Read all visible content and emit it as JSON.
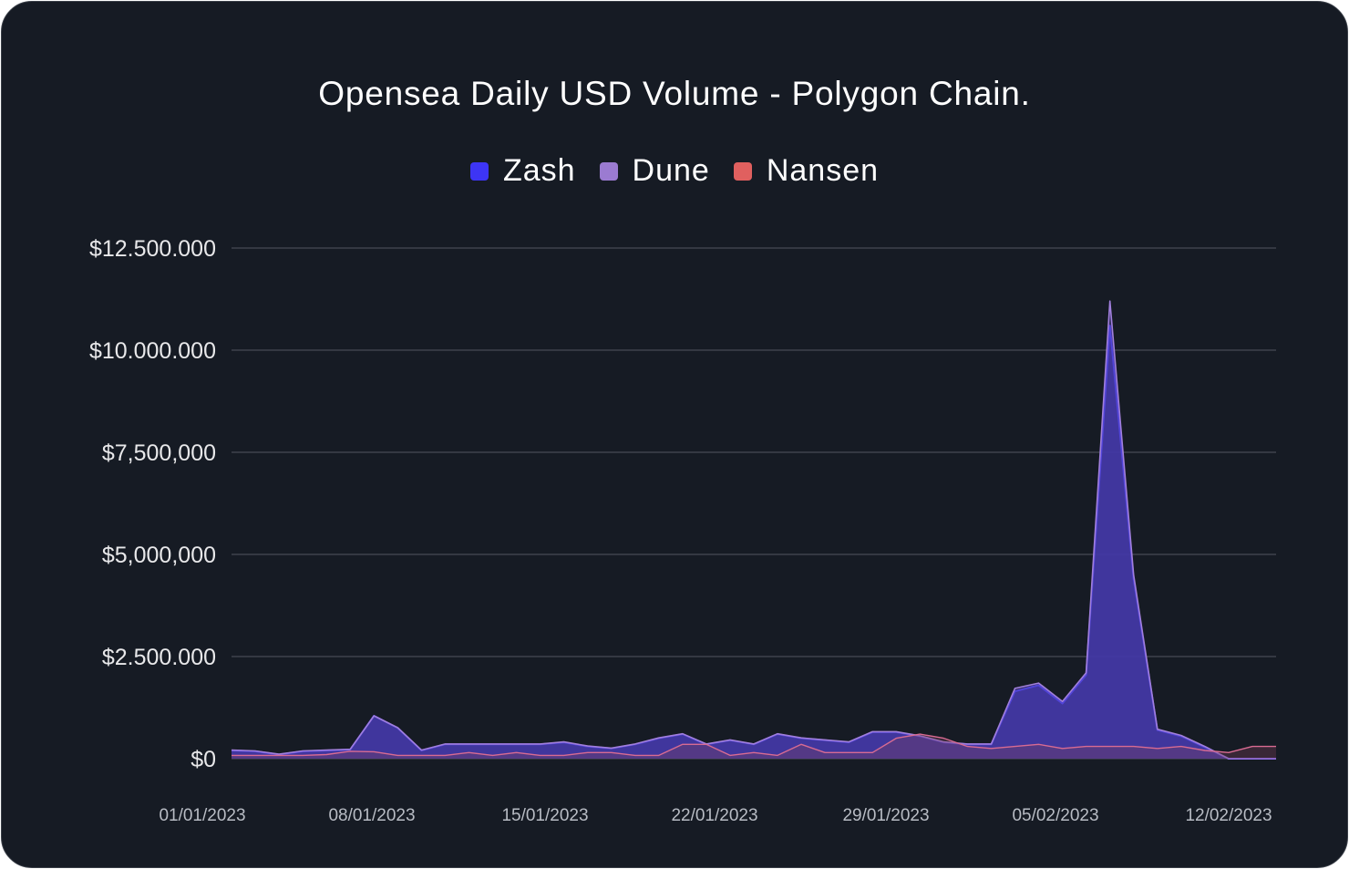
{
  "chart_data": {
    "type": "area",
    "title": "Opensea Daily USD Volume - Polygon Chain.",
    "xlabel": "",
    "ylabel": "",
    "ylim": [
      0,
      12500000
    ],
    "y_tick_values": [
      0,
      2500000,
      5000000,
      7500000,
      10000000,
      12500000
    ],
    "y_tick_labels": [
      "$0",
      "$2.500.000",
      "$5,000,000",
      "$7,500,000",
      "$10.000.000",
      "$12.500.000"
    ],
    "x_tick_labels": [
      "01/01/2023",
      "08/01/2023",
      "15/01/2023",
      "22/01/2023",
      "29/01/2023",
      "05/02/2023",
      "12/02/2023"
    ],
    "x": [
      "2022-12-30",
      "2022-12-31",
      "2023-01-01",
      "2023-01-02",
      "2023-01-03",
      "2023-01-04",
      "2023-01-05",
      "2023-01-06",
      "2023-01-07",
      "2023-01-08",
      "2023-01-09",
      "2023-01-10",
      "2023-01-11",
      "2023-01-12",
      "2023-01-13",
      "2023-01-14",
      "2023-01-15",
      "2023-01-16",
      "2023-01-17",
      "2023-01-18",
      "2023-01-19",
      "2023-01-20",
      "2023-01-21",
      "2023-01-22",
      "2023-01-23",
      "2023-01-24",
      "2023-01-25",
      "2023-01-26",
      "2023-01-27",
      "2023-01-28",
      "2023-01-29",
      "2023-01-30",
      "2023-01-31",
      "2023-02-01",
      "2023-02-02",
      "2023-02-03",
      "2023-02-04",
      "2023-02-05",
      "2023-02-06",
      "2023-02-07",
      "2023-02-08",
      "2023-02-09",
      "2023-02-10",
      "2023-02-11",
      "2023-02-12",
      "2023-02-13"
    ],
    "series": [
      {
        "name": "Zash",
        "color": "#3d35f5",
        "values": [
          120000,
          200000,
          180000,
          100000,
          180000,
          200000,
          220000,
          1050000,
          750000,
          200000,
          350000,
          350000,
          350000,
          350000,
          350000,
          400000,
          300000,
          250000,
          350000,
          500000,
          600000,
          350000,
          450000,
          350000,
          600000,
          500000,
          450000,
          400000,
          650000,
          650000,
          550000,
          400000,
          350000,
          350000,
          1650000,
          1800000,
          1350000,
          2050000,
          10600000,
          4400000,
          700000,
          550000,
          280000,
          0,
          0,
          0
        ]
      },
      {
        "name": "Dune",
        "color": "#9b7bd1",
        "values": [
          130000,
          210000,
          190000,
          110000,
          190000,
          210000,
          230000,
          1050000,
          760000,
          210000,
          360000,
          360000,
          360000,
          360000,
          360000,
          410000,
          310000,
          260000,
          360000,
          510000,
          610000,
          360000,
          460000,
          360000,
          610000,
          510000,
          460000,
          410000,
          660000,
          660000,
          560000,
          410000,
          360000,
          360000,
          1720000,
          1850000,
          1400000,
          2100000,
          11200000,
          4500000,
          720000,
          570000,
          300000,
          0,
          0,
          0
        ]
      },
      {
        "name": "Nansen",
        "color": "#e0605f",
        "values": [
          80000,
          80000,
          80000,
          80000,
          80000,
          100000,
          180000,
          170000,
          80000,
          80000,
          80000,
          150000,
          80000,
          150000,
          80000,
          80000,
          150000,
          150000,
          80000,
          80000,
          350000,
          350000,
          80000,
          150000,
          80000,
          350000,
          150000,
          150000,
          150000,
          500000,
          600000,
          500000,
          300000,
          250000,
          300000,
          350000,
          250000,
          300000,
          300000,
          300000,
          250000,
          300000,
          200000,
          150000,
          300000,
          300000
        ]
      }
    ],
    "legend_position": "top",
    "grid": true
  }
}
